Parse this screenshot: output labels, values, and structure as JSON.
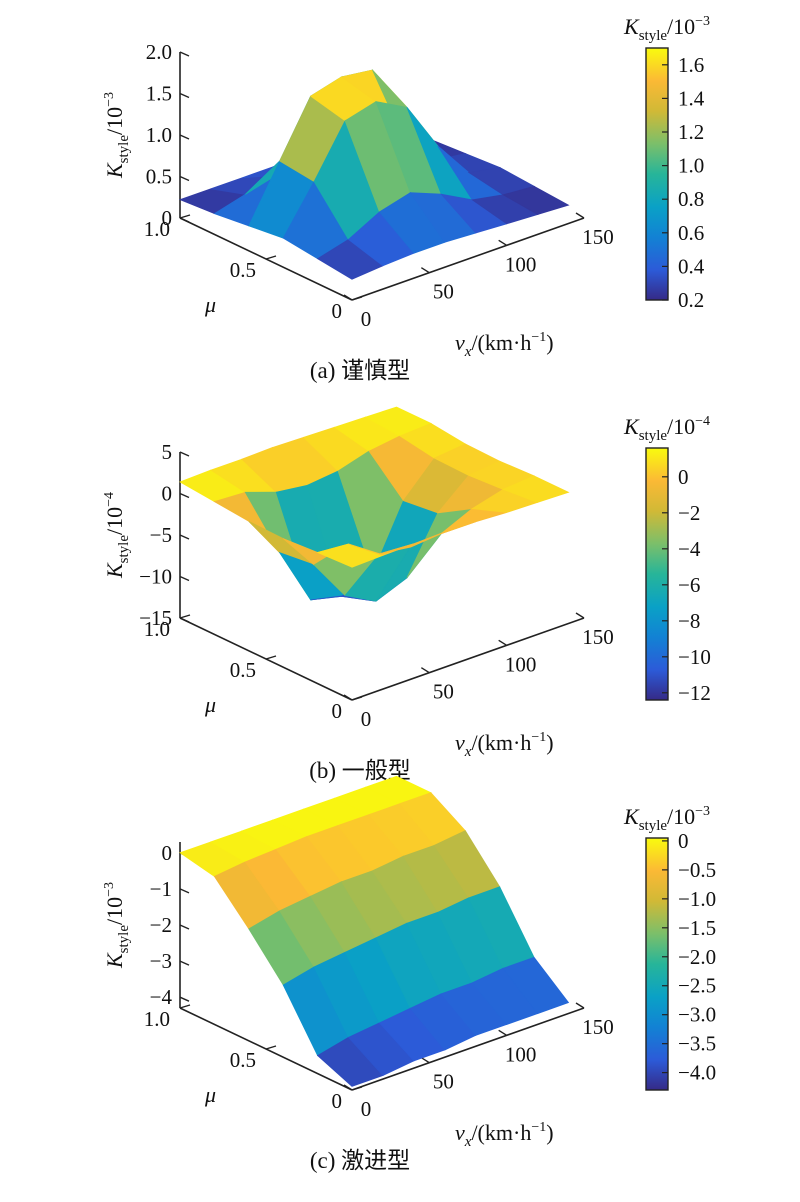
{
  "chart_data": [
    {
      "type": "surface",
      "caption": "(a) 谨慎型",
      "colorbar": {
        "label_main": "K",
        "label_sub": "style",
        "label_rest": "/10",
        "label_exp": "−3",
        "min": 0.2,
        "max": 1.7,
        "ticks": [
          "0.2",
          "0.4",
          "0.6",
          "0.8",
          "1.0",
          "1.2",
          "1.4",
          "1.6"
        ],
        "tick_values": [
          0.2,
          0.4,
          0.6,
          0.8,
          1.0,
          1.2,
          1.4,
          1.6
        ]
      },
      "zaxis": {
        "label_main": "K",
        "label_sub": "style",
        "label_rest": "/10",
        "label_exp": "−3",
        "min": 0,
        "max": 2.0,
        "ticks": [
          "0",
          "0.5",
          "1.0",
          "1.5",
          "2.0"
        ],
        "tick_values": [
          0,
          0.5,
          1.0,
          1.5,
          2.0
        ]
      },
      "xaxis": {
        "label": "v",
        "label_sub": "x",
        "label_unit": "/(km·h",
        "label_unit_exp": "−1",
        "label_unit_end": ")",
        "ticks": [
          "0",
          "50",
          "100",
          "150"
        ],
        "tick_values": [
          0,
          50,
          100,
          150
        ],
        "range": [
          0,
          150
        ]
      },
      "yaxis": {
        "label": "μ",
        "ticks": [
          "0",
          "0.5",
          "1.0"
        ],
        "tick_values": [
          0,
          0.5,
          1.0
        ],
        "range": [
          0,
          1
        ]
      },
      "v": [
        0,
        20,
        40,
        60,
        80,
        100,
        120,
        140
      ],
      "mu": [
        0,
        0.2,
        0.4,
        0.6,
        0.8,
        1.0
      ],
      "z": [
        [
          0.25,
          0.28,
          0.3,
          0.3,
          0.28,
          0.26,
          0.24,
          0.22
        ],
        [
          0.3,
          0.4,
          0.6,
          0.7,
          0.55,
          0.35,
          0.28,
          0.25
        ],
        [
          0.35,
          0.9,
          1.5,
          1.6,
          1.4,
          0.8,
          0.35,
          0.28
        ],
        [
          0.3,
          0.95,
          1.6,
          1.7,
          1.65,
          0.7,
          0.3,
          0.25
        ],
        [
          0.25,
          0.35,
          0.45,
          0.5,
          0.4,
          0.3,
          0.25,
          0.22
        ],
        [
          0.22,
          0.22,
          0.22,
          0.22,
          0.22,
          0.22,
          0.22,
          0.22
        ]
      ]
    },
    {
      "type": "surface",
      "caption": "(b) 一般型",
      "colorbar": {
        "label_main": "K",
        "label_sub": "style",
        "label_rest": "/10",
        "label_exp": "−4",
        "min": -12.4,
        "max": 1.6,
        "ticks": [
          "−12",
          "−10",
          "−8",
          "−6",
          "−4",
          "−2",
          "0"
        ],
        "tick_values": [
          -12,
          -10,
          -8,
          -6,
          -4,
          -2,
          0
        ]
      },
      "zaxis": {
        "label_main": "K",
        "label_sub": "style",
        "label_rest": "/10",
        "label_exp": "−4",
        "min": -15,
        "max": 5,
        "ticks": [
          "−15",
          "−10",
          "−5",
          "0",
          "5"
        ],
        "tick_values": [
          -15,
          -10,
          -5,
          0,
          5
        ]
      },
      "xaxis": {
        "label": "v",
        "label_sub": "x",
        "label_unit": "/(km·h",
        "label_unit_exp": "−1",
        "label_unit_end": ")",
        "ticks": [
          "0",
          "50",
          "100",
          "150"
        ],
        "tick_values": [
          0,
          50,
          100,
          150
        ],
        "range": [
          0,
          150
        ]
      },
      "yaxis": {
        "label": "μ",
        "ticks": [
          "0",
          "0.5",
          "1.0"
        ],
        "tick_values": [
          0,
          0.5,
          1.0
        ],
        "range": [
          0,
          1
        ]
      },
      "v": [
        0,
        20,
        40,
        60,
        80,
        100,
        120,
        140
      ],
      "mu": [
        0,
        0.2,
        0.4,
        0.6,
        0.8,
        1.0
      ],
      "z": [
        [
          1.0,
          1.1,
          1.2,
          1.3,
          1.2,
          1.0,
          0.9,
          0.8
        ],
        [
          0.8,
          0.5,
          -2.0,
          -2.5,
          -2.2,
          -0.5,
          0.5,
          0.8
        ],
        [
          0.5,
          -4.0,
          -9.0,
          -11.0,
          -9.5,
          -3.0,
          0.2,
          0.6
        ],
        [
          0.6,
          -4.5,
          -11.5,
          -12.4,
          -11.0,
          -3.5,
          0.3,
          0.7
        ],
        [
          1.0,
          0.8,
          -0.5,
          -1.0,
          -0.6,
          0.5,
          1.0,
          1.2
        ],
        [
          1.4,
          1.5,
          1.5,
          1.6,
          1.5,
          1.4,
          1.3,
          1.2
        ]
      ]
    },
    {
      "type": "surface",
      "caption": "(c) 激进型",
      "colorbar": {
        "label_main": "K",
        "label_sub": "style",
        "label_rest": "/10",
        "label_exp": "−3",
        "min": -4.3,
        "max": 0.05,
        "ticks": [
          "−4.0",
          "−3.5",
          "−3.0",
          "−2.5",
          "−2.0",
          "−1.5",
          "−1.0",
          "−0.5",
          "0"
        ],
        "tick_values": [
          -4.0,
          -3.5,
          -3.0,
          -2.5,
          -2.0,
          -1.5,
          -1.0,
          -0.5,
          0
        ]
      },
      "zaxis": {
        "label_main": "K",
        "label_sub": "style",
        "label_rest": "/10",
        "label_exp": "−3",
        "min": -4.3,
        "max": 0.3,
        "ticks": [
          "−4",
          "−3",
          "−2",
          "−1",
          "0"
        ],
        "tick_values": [
          -4,
          -3,
          -2,
          -1,
          0
        ]
      },
      "xaxis": {
        "label": "v",
        "label_sub": "x",
        "label_unit": "/(km·h",
        "label_unit_exp": "−1",
        "label_unit_end": ")",
        "ticks": [
          "0",
          "50",
          "100",
          "150"
        ],
        "tick_values": [
          0,
          50,
          100,
          150
        ],
        "range": [
          0,
          150
        ]
      },
      "yaxis": {
        "label": "μ",
        "ticks": [
          "0",
          "0.5",
          "1.0"
        ],
        "tick_values": [
          0,
          0.5,
          1.0
        ],
        "range": [
          0,
          1
        ]
      },
      "v": [
        0,
        20,
        40,
        60,
        80,
        100,
        120,
        140
      ],
      "mu": [
        0,
        0.2,
        0.4,
        0.6,
        0.8,
        1.0
      ],
      "z": [
        [
          -4.2,
          -4.2,
          -4.1,
          -4.1,
          -4.0,
          -4.0,
          -4.0,
          -4.0
        ],
        [
          -3.8,
          -3.6,
          -3.5,
          -3.4,
          -3.3,
          -3.3,
          -3.2,
          -3.2
        ],
        [
          -2.3,
          -2.1,
          -2.0,
          -1.9,
          -1.8,
          -1.8,
          -1.7,
          -1.7
        ],
        [
          -1.2,
          -1.0,
          -0.9,
          -0.8,
          -0.8,
          -0.7,
          -0.7,
          -0.6
        ],
        [
          -0.2,
          -0.1,
          -0.05,
          0.0,
          0.0,
          0.0,
          0.0,
          0.0
        ],
        [
          0.0,
          0.0,
          0.0,
          0.0,
          0.0,
          0.0,
          0.0,
          0.0
        ]
      ]
    }
  ]
}
